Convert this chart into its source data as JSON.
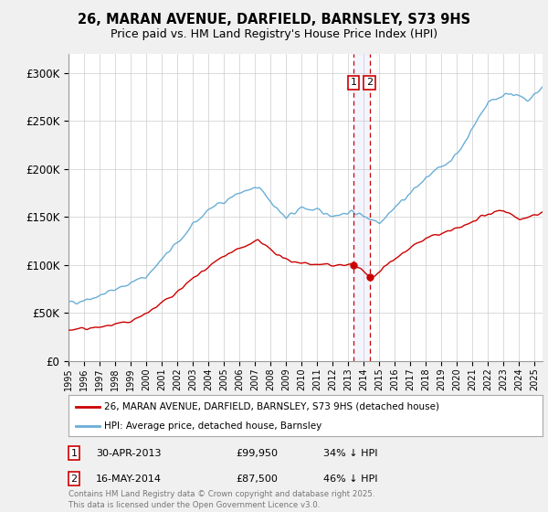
{
  "title": "26, MARAN AVENUE, DARFIELD, BARNSLEY, S73 9HS",
  "subtitle": "Price paid vs. HM Land Registry's House Price Index (HPI)",
  "ylabel_ticks": [
    "£0",
    "£50K",
    "£100K",
    "£150K",
    "£200K",
    "£250K",
    "£300K"
  ],
  "ytick_vals": [
    0,
    50000,
    100000,
    150000,
    200000,
    250000,
    300000
  ],
  "ylim": [
    0,
    320000
  ],
  "xlim_start": 1995.0,
  "xlim_end": 2025.5,
  "hpi_color": "#6aaed6",
  "price_color": "#cc0000",
  "sale1_date": 2013.33,
  "sale2_date": 2014.38,
  "sale1_price": 99950,
  "sale2_price": 87500,
  "sale1_text": "30-APR-2013",
  "sale1_price_text": "£99,950",
  "sale1_hpi_text": "34% ↓ HPI",
  "sale2_text": "16-MAY-2014",
  "sale2_price_text": "£87,500",
  "sale2_hpi_text": "46% ↓ HPI",
  "legend_line1": "26, MARAN AVENUE, DARFIELD, BARNSLEY, S73 9HS (detached house)",
  "legend_line2": "HPI: Average price, detached house, Barnsley",
  "footer": "Contains HM Land Registry data © Crown copyright and database right 2025.\nThis data is licensed under the Open Government Licence v3.0.",
  "background_color": "#f0f0f0",
  "plot_bg_color": "#ffffff",
  "grid_color": "#cccccc"
}
